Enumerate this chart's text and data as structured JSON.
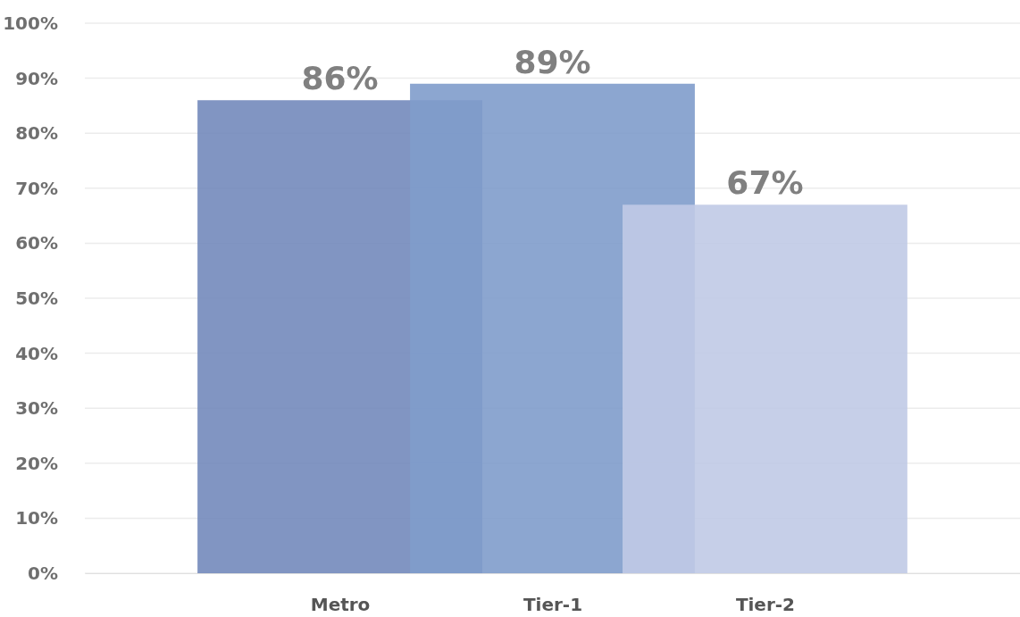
{
  "chart_data": {
    "type": "bar",
    "categories": [
      "Metro",
      "Tier-1",
      "Tier-2"
    ],
    "values": [
      86,
      89,
      67
    ],
    "colors": [
      "#7389bb",
      "#7f9ccb",
      "#c0cae5"
    ],
    "ylim": [
      0,
      100
    ],
    "yticks": [
      {
        "value": 0,
        "label": "0%"
      },
      {
        "value": 10,
        "label": "10%"
      },
      {
        "value": 20,
        "label": "20%"
      },
      {
        "value": 30,
        "label": "30%"
      },
      {
        "value": 40,
        "label": "40%"
      },
      {
        "value": 50,
        "label": "50%"
      },
      {
        "value": 60,
        "label": "60%"
      },
      {
        "value": 70,
        "label": "70%"
      },
      {
        "value": 80,
        "label": "80%"
      },
      {
        "value": 90,
        "label": "90%"
      },
      {
        "value": 100,
        "label": "100%"
      }
    ],
    "value_labels": [
      "86%",
      "89%",
      "67%"
    ],
    "grid": "y"
  }
}
